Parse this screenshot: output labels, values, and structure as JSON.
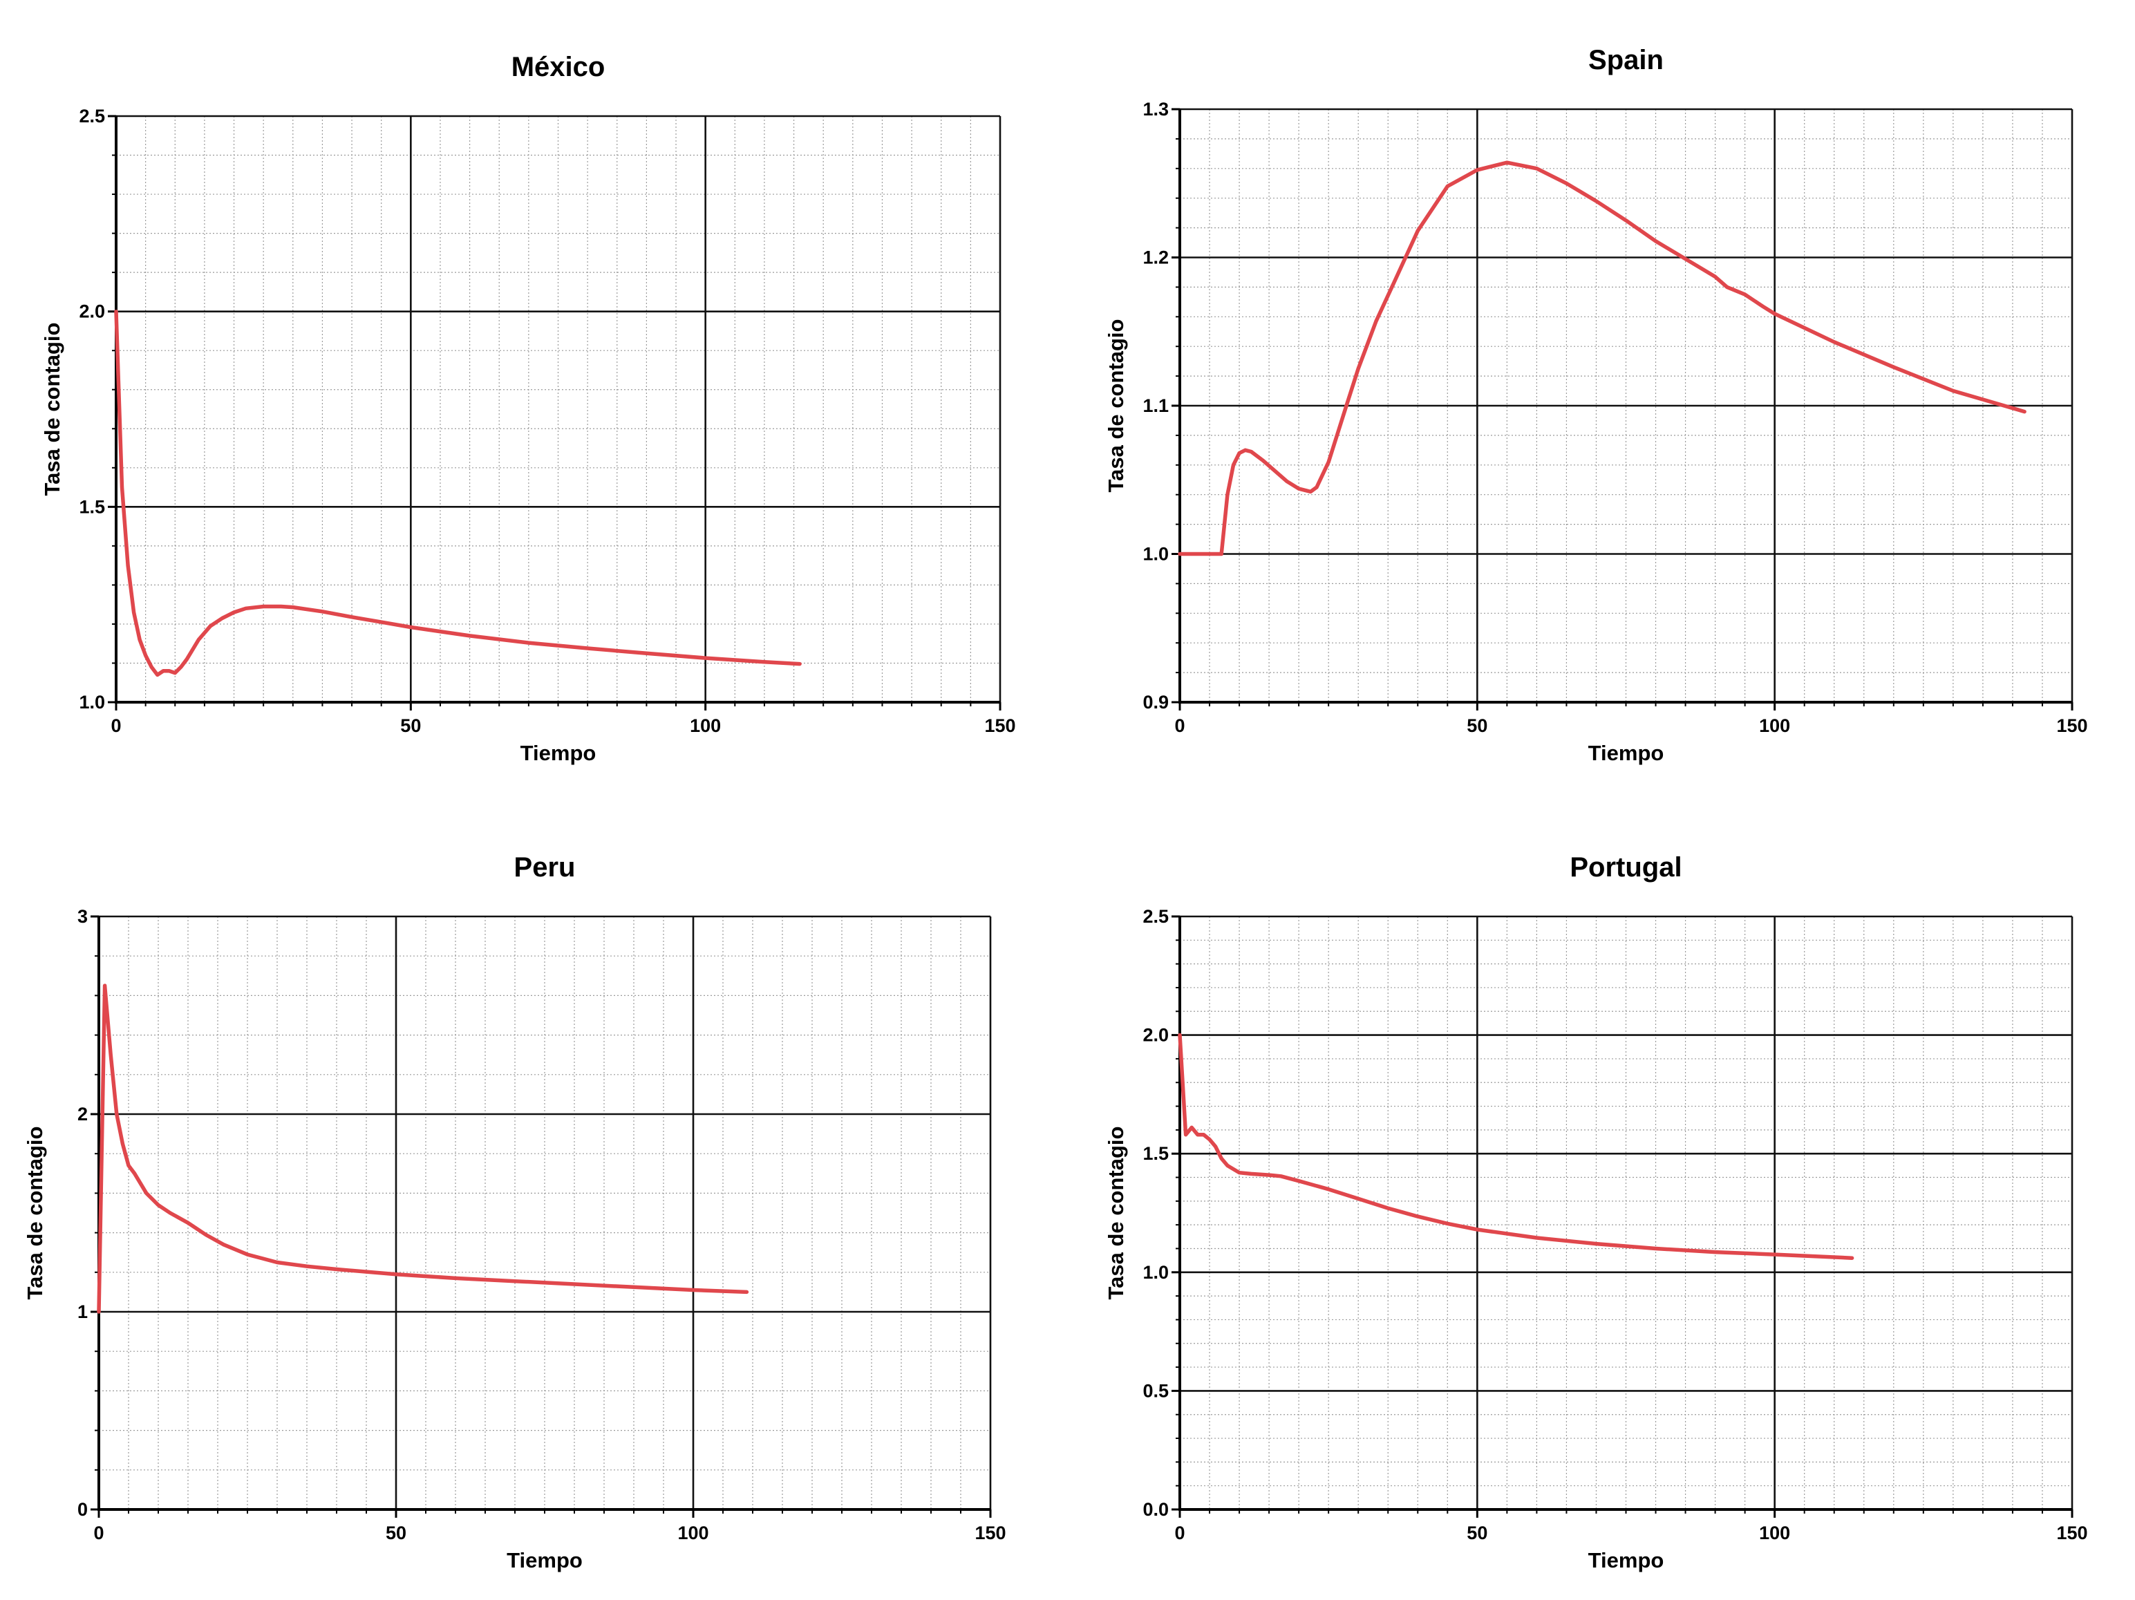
{
  "chart_data": [
    {
      "type": "line",
      "title": "México",
      "xlabel": "Tiempo",
      "ylabel": "Tasa de contagio",
      "xlim": [
        0,
        150
      ],
      "ylim": [
        1.0,
        2.5
      ],
      "xticks": [
        0,
        50,
        100,
        150
      ],
      "xtick_labels": [
        "0",
        "50",
        "100",
        "150"
      ],
      "yticks": [
        1.0,
        1.5,
        2.0,
        2.5
      ],
      "ytick_labels": [
        "1.0",
        "1.5",
        "2.0",
        "2.5"
      ],
      "grid": true,
      "series": [
        {
          "color": "#e0474c",
          "x": [
            0,
            1,
            2,
            3,
            4,
            5,
            6,
            7,
            8,
            9,
            10,
            11,
            12,
            14,
            16,
            18,
            20,
            22,
            25,
            28,
            30,
            35,
            40,
            45,
            50,
            60,
            70,
            80,
            90,
            100,
            110,
            116
          ],
          "y": [
            2.0,
            1.55,
            1.35,
            1.23,
            1.16,
            1.12,
            1.09,
            1.07,
            1.08,
            1.08,
            1.075,
            1.09,
            1.11,
            1.16,
            1.195,
            1.215,
            1.23,
            1.24,
            1.245,
            1.245,
            1.243,
            1.232,
            1.218,
            1.205,
            1.192,
            1.17,
            1.152,
            1.138,
            1.125,
            1.113,
            1.103,
            1.098
          ]
        }
      ]
    },
    {
      "type": "line",
      "title": "Spain",
      "xlabel": "Tiempo",
      "ylabel": "Tasa de contagio",
      "xlim": [
        0,
        150
      ],
      "ylim": [
        0.9,
        1.3
      ],
      "xticks": [
        0,
        50,
        100,
        150
      ],
      "xtick_labels": [
        "0",
        "50",
        "100",
        "150"
      ],
      "yticks": [
        0.9,
        1.0,
        1.1,
        1.2,
        1.3
      ],
      "ytick_labels": [
        "0.9",
        "1.0",
        "1.1",
        "1.2",
        "1.3"
      ],
      "grid": true,
      "series": [
        {
          "color": "#e0474c",
          "x": [
            0,
            7,
            8,
            9,
            10,
            11,
            12,
            14,
            16,
            18,
            20,
            22,
            23,
            25,
            28,
            30,
            33,
            36,
            40,
            45,
            50,
            55,
            60,
            65,
            70,
            75,
            80,
            85,
            90,
            92,
            95,
            98,
            100,
            110,
            120,
            130,
            142
          ],
          "y": [
            1.0,
            1.0,
            1.04,
            1.06,
            1.068,
            1.07,
            1.069,
            1.063,
            1.056,
            1.049,
            1.044,
            1.042,
            1.045,
            1.062,
            1.1,
            1.125,
            1.157,
            1.183,
            1.218,
            1.248,
            1.259,
            1.264,
            1.26,
            1.25,
            1.238,
            1.225,
            1.211,
            1.199,
            1.187,
            1.18,
            1.175,
            1.167,
            1.162,
            1.143,
            1.126,
            1.11,
            1.096
          ]
        }
      ]
    },
    {
      "type": "line",
      "title": "Peru",
      "xlabel": "Tiempo",
      "ylabel": "Tasa de contagio",
      "xlim": [
        0,
        150
      ],
      "ylim": [
        0,
        3
      ],
      "xticks": [
        0,
        50,
        100,
        150
      ],
      "xtick_labels": [
        "0",
        "50",
        "100",
        "150"
      ],
      "yticks": [
        0,
        1,
        2,
        3
      ],
      "ytick_labels": [
        "0",
        "1",
        "2",
        "3"
      ],
      "grid": true,
      "series": [
        {
          "color": "#e0474c",
          "x": [
            0,
            1,
            2,
            3,
            4,
            5,
            6,
            8,
            10,
            12,
            15,
            18,
            21,
            25,
            30,
            35,
            40,
            50,
            60,
            70,
            80,
            90,
            100,
            109
          ],
          "y": [
            1.0,
            2.65,
            2.3,
            2.0,
            1.85,
            1.74,
            1.7,
            1.6,
            1.54,
            1.5,
            1.45,
            1.39,
            1.34,
            1.29,
            1.25,
            1.23,
            1.215,
            1.19,
            1.17,
            1.155,
            1.14,
            1.125,
            1.11,
            1.1
          ]
        }
      ]
    },
    {
      "type": "line",
      "title": "Portugal",
      "xlabel": "Tiempo",
      "ylabel": "Tasa de contagio",
      "xlim": [
        0,
        150
      ],
      "ylim": [
        0.0,
        2.5
      ],
      "xticks": [
        0,
        50,
        100,
        150
      ],
      "xtick_labels": [
        "0",
        "50",
        "100",
        "150"
      ],
      "yticks": [
        0.0,
        0.5,
        1.0,
        1.5,
        2.0,
        2.5
      ],
      "ytick_labels": [
        "0.0",
        "0.5",
        "1.0",
        "1.5",
        "2.0",
        "2.5"
      ],
      "grid": true,
      "series": [
        {
          "color": "#e0474c",
          "x": [
            0,
            1,
            2,
            3,
            4,
            5,
            6,
            7,
            8,
            10,
            12,
            15,
            17,
            20,
            25,
            30,
            35,
            40,
            45,
            50,
            60,
            70,
            80,
            90,
            100,
            113
          ],
          "y": [
            2.0,
            1.58,
            1.61,
            1.58,
            1.58,
            1.56,
            1.53,
            1.48,
            1.45,
            1.42,
            1.415,
            1.41,
            1.405,
            1.385,
            1.35,
            1.31,
            1.27,
            1.235,
            1.205,
            1.18,
            1.145,
            1.12,
            1.1,
            1.085,
            1.075,
            1.06
          ]
        }
      ]
    }
  ]
}
